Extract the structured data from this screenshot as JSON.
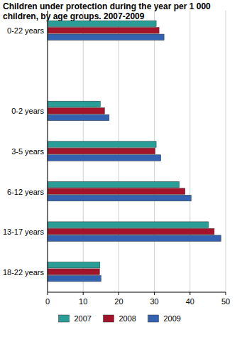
{
  "chart_data": {
    "type": "bar",
    "orientation": "horizontal",
    "title": "Children under protection during the year per 1 000 children, by age groups. 2007-2009",
    "categories": [
      "0-22 years",
      null,
      "0-2 years",
      "3-5 years",
      "6-12 years",
      "13-17 years",
      "18-22 years"
    ],
    "series": [
      {
        "name": "2007",
        "color": "#2a9d96",
        "values": [
          30.5,
          null,
          14.8,
          30.5,
          37.0,
          45.2,
          14.7
        ]
      },
      {
        "name": "2008",
        "color": "#a3142a",
        "values": [
          31.3,
          null,
          16.0,
          30.2,
          38.6,
          46.8,
          14.6
        ]
      },
      {
        "name": "2009",
        "color": "#3363b0",
        "values": [
          32.7,
          null,
          17.3,
          31.8,
          40.3,
          48.7,
          15.0
        ]
      }
    ],
    "xlim": [
      0,
      50
    ],
    "xticks": [
      0,
      10,
      20,
      30,
      40,
      50
    ],
    "grid": true,
    "legend": "bottom"
  }
}
